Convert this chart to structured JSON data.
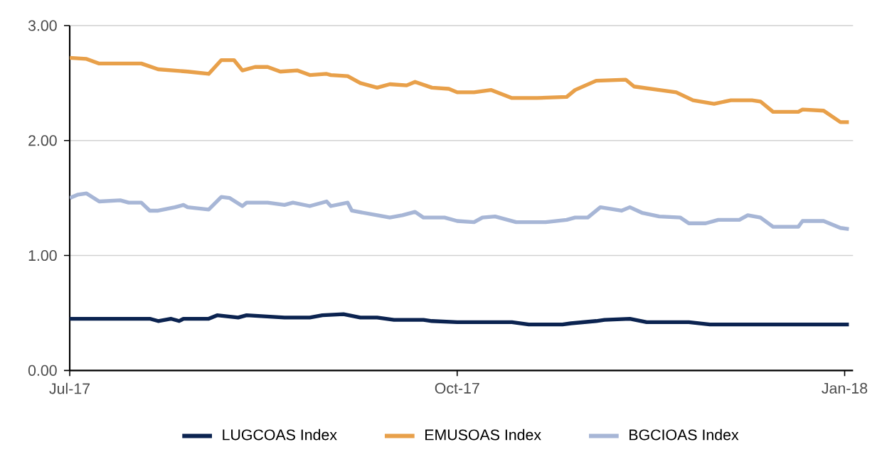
{
  "chart_data": {
    "type": "line",
    "xlim": [
      "2017-07-01",
      "2018-01-03"
    ],
    "xticks": [
      {
        "value": "2017-07-01",
        "label": "Jul-17"
      },
      {
        "value": "2017-10-01",
        "label": "Oct-17"
      },
      {
        "value": "2018-01-01",
        "label": "Jan-18"
      }
    ],
    "ylim": [
      0,
      3
    ],
    "yticks": [
      {
        "value": 0,
        "label": "0.00"
      },
      {
        "value": 1,
        "label": "1.00"
      },
      {
        "value": 2,
        "label": "2.00"
      },
      {
        "value": 3,
        "label": "3.00"
      }
    ],
    "grid": "y",
    "legend": "bottom",
    "marker": "none",
    "line_style": "solid",
    "series": [
      {
        "name": "LUGCOAS Index",
        "color": "#0b2350",
        "x": [
          "2017-07-01",
          "2017-07-20",
          "2017-07-22",
          "2017-07-25",
          "2017-07-27",
          "2017-07-28",
          "2017-08-03",
          "2017-08-05",
          "2017-08-10",
          "2017-08-12",
          "2017-08-21",
          "2017-08-27",
          "2017-08-30",
          "2017-09-04",
          "2017-09-08",
          "2017-09-12",
          "2017-09-16",
          "2017-09-23",
          "2017-09-25",
          "2017-10-01",
          "2017-10-14",
          "2017-10-18",
          "2017-10-26",
          "2017-10-28",
          "2017-11-03",
          "2017-11-05",
          "2017-11-11",
          "2017-11-15",
          "2017-11-25",
          "2017-11-30",
          "2018-01-02"
        ],
        "values": [
          0.45,
          0.45,
          0.43,
          0.45,
          0.43,
          0.45,
          0.45,
          0.48,
          0.46,
          0.48,
          0.46,
          0.46,
          0.48,
          0.49,
          0.46,
          0.46,
          0.44,
          0.44,
          0.43,
          0.42,
          0.42,
          0.4,
          0.4,
          0.41,
          0.43,
          0.44,
          0.45,
          0.42,
          0.42,
          0.4,
          0.4
        ]
      },
      {
        "name": "EMUSOAS Index",
        "color": "#e8a04a",
        "x": [
          "2017-07-01",
          "2017-07-05",
          "2017-07-08",
          "2017-07-18",
          "2017-07-22",
          "2017-07-29",
          "2017-08-03",
          "2017-08-06",
          "2017-08-09",
          "2017-08-11",
          "2017-08-14",
          "2017-08-17",
          "2017-08-20",
          "2017-08-24",
          "2017-08-27",
          "2017-08-31",
          "2017-09-01",
          "2017-09-05",
          "2017-09-08",
          "2017-09-12",
          "2017-09-15",
          "2017-09-19",
          "2017-09-21",
          "2017-09-25",
          "2017-09-29",
          "2017-10-01",
          "2017-10-05",
          "2017-10-09",
          "2017-10-14",
          "2017-10-20",
          "2017-10-27",
          "2017-10-29",
          "2017-11-03",
          "2017-11-10",
          "2017-11-12",
          "2017-11-18",
          "2017-11-22",
          "2017-11-26",
          "2017-12-01",
          "2017-12-05",
          "2017-12-10",
          "2017-12-12",
          "2017-12-15",
          "2017-12-21",
          "2017-12-22",
          "2017-12-27",
          "2017-12-31",
          "2018-01-02"
        ],
        "values": [
          2.72,
          2.71,
          2.67,
          2.67,
          2.62,
          2.6,
          2.58,
          2.7,
          2.7,
          2.61,
          2.64,
          2.64,
          2.6,
          2.61,
          2.57,
          2.58,
          2.57,
          2.56,
          2.5,
          2.46,
          2.49,
          2.48,
          2.51,
          2.46,
          2.45,
          2.42,
          2.42,
          2.44,
          2.37,
          2.37,
          2.38,
          2.44,
          2.52,
          2.53,
          2.47,
          2.44,
          2.42,
          2.35,
          2.32,
          2.35,
          2.35,
          2.34,
          2.25,
          2.25,
          2.27,
          2.26,
          2.16,
          2.16
        ]
      },
      {
        "name": "BGCIOAS Index",
        "color": "#a7b6d6",
        "x": [
          "2017-07-01",
          "2017-07-03",
          "2017-07-05",
          "2017-07-08",
          "2017-07-13",
          "2017-07-15",
          "2017-07-18",
          "2017-07-20",
          "2017-07-22",
          "2017-07-26",
          "2017-07-28",
          "2017-07-29",
          "2017-08-03",
          "2017-08-06",
          "2017-08-08",
          "2017-08-11",
          "2017-08-12",
          "2017-08-17",
          "2017-08-21",
          "2017-08-23",
          "2017-08-27",
          "2017-08-31",
          "2017-09-01",
          "2017-09-05",
          "2017-09-06",
          "2017-09-12",
          "2017-09-15",
          "2017-09-18",
          "2017-09-21",
          "2017-09-23",
          "2017-09-28",
          "2017-10-01",
          "2017-10-05",
          "2017-10-07",
          "2017-10-10",
          "2017-10-15",
          "2017-10-22",
          "2017-10-27",
          "2017-10-29",
          "2017-11-01",
          "2017-11-04",
          "2017-11-09",
          "2017-11-11",
          "2017-11-14",
          "2017-11-18",
          "2017-11-23",
          "2017-11-25",
          "2017-11-29",
          "2017-12-02",
          "2017-12-07",
          "2017-12-09",
          "2017-12-12",
          "2017-12-15",
          "2017-12-21",
          "2017-12-22",
          "2017-12-27",
          "2017-12-31",
          "2018-01-02"
        ],
        "values": [
          1.5,
          1.53,
          1.54,
          1.47,
          1.48,
          1.46,
          1.46,
          1.39,
          1.39,
          1.42,
          1.44,
          1.42,
          1.4,
          1.51,
          1.5,
          1.43,
          1.46,
          1.46,
          1.44,
          1.46,
          1.43,
          1.47,
          1.43,
          1.46,
          1.39,
          1.35,
          1.33,
          1.35,
          1.38,
          1.33,
          1.33,
          1.3,
          1.29,
          1.33,
          1.34,
          1.29,
          1.29,
          1.31,
          1.33,
          1.33,
          1.42,
          1.39,
          1.42,
          1.37,
          1.34,
          1.33,
          1.28,
          1.28,
          1.31,
          1.31,
          1.35,
          1.33,
          1.25,
          1.25,
          1.3,
          1.3,
          1.24,
          1.23
        ]
      }
    ]
  }
}
